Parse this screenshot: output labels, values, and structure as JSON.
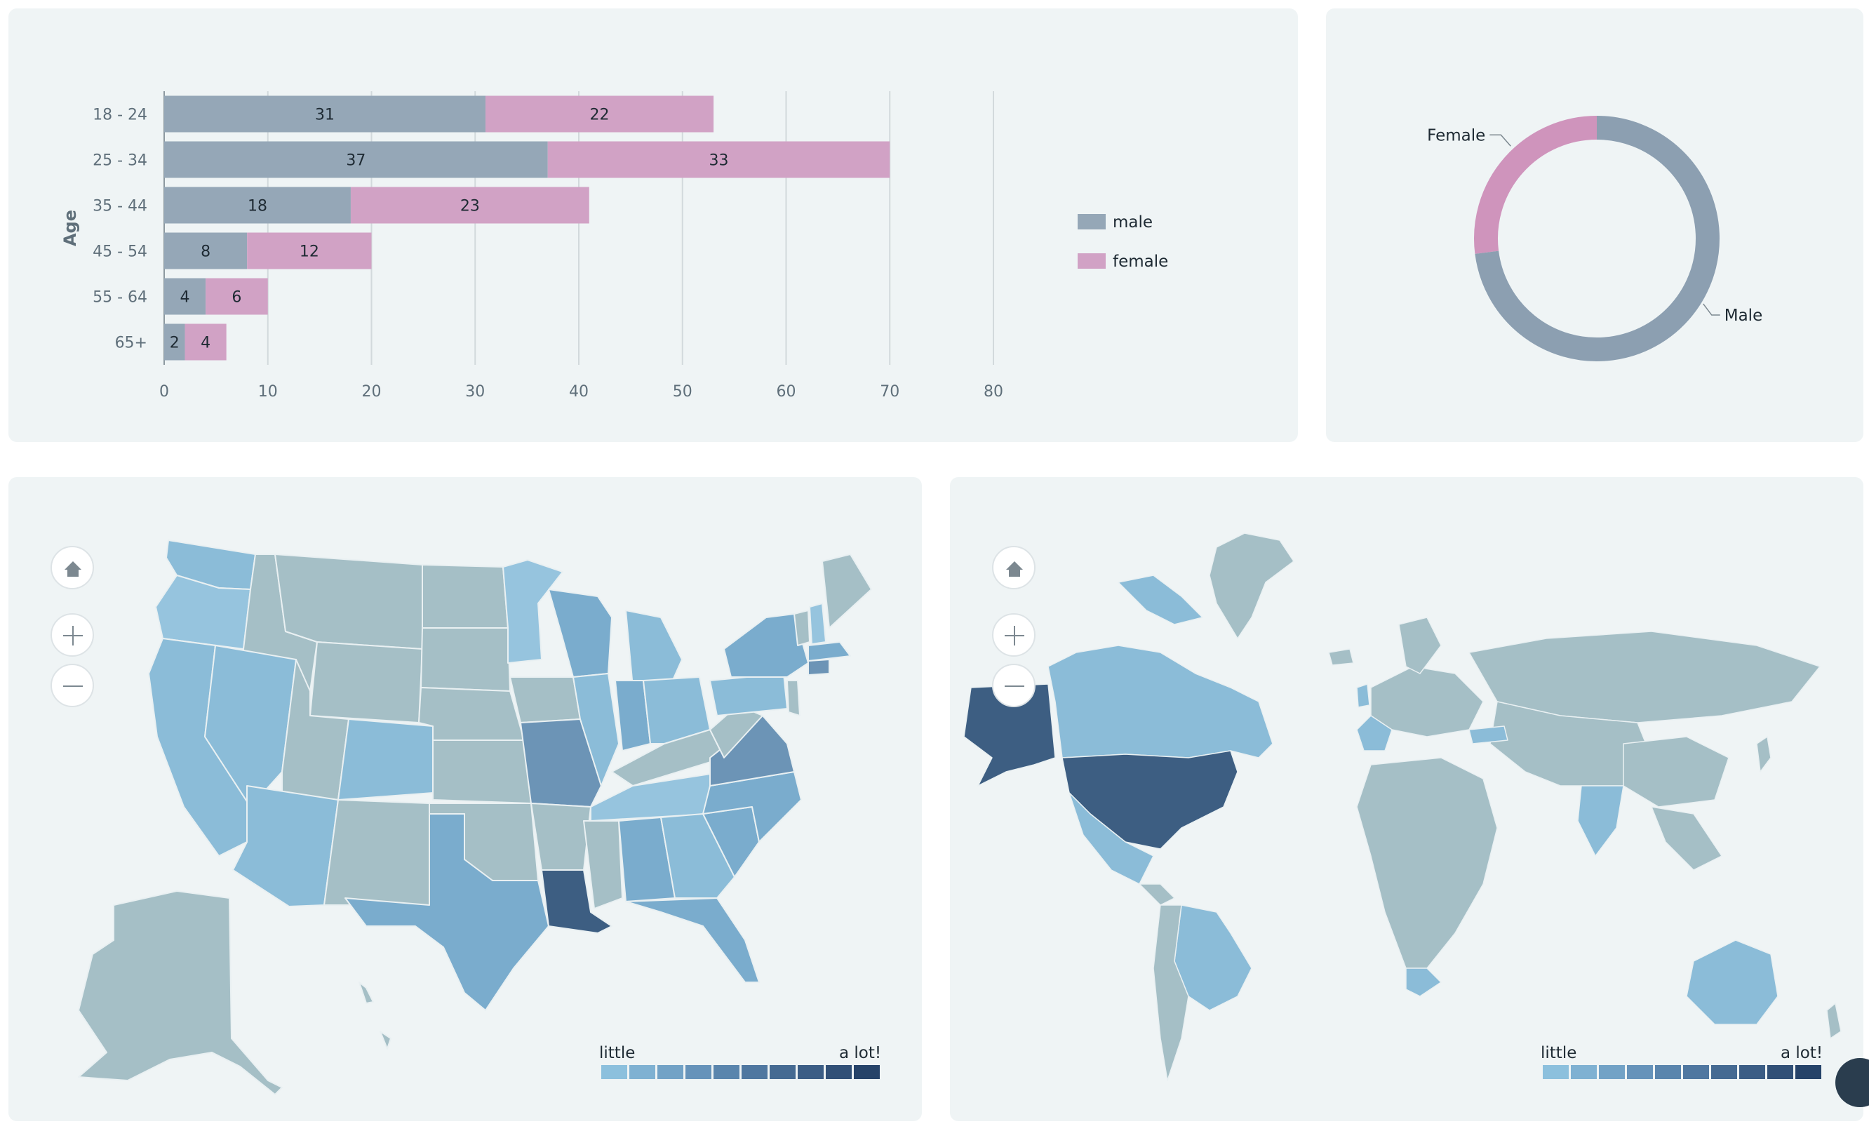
{
  "bar_chart": {
    "chart_data": {
      "type": "bar",
      "orientation": "horizontal",
      "stacked": true,
      "categories": [
        "18 - 24",
        "25 - 34",
        "35 - 44",
        "45 - 54",
        "55 - 64",
        "65+"
      ],
      "series": [
        {
          "name": "male",
          "values": [
            31,
            37,
            18,
            8,
            4,
            2
          ],
          "color": "#95a7b7"
        },
        {
          "name": "female",
          "values": [
            22,
            33,
            23,
            12,
            6,
            4
          ],
          "color": "#d1a2c5"
        }
      ],
      "xlabel": "",
      "ylabel": "Age",
      "xlim": [
        0,
        80
      ],
      "xticks": [
        "0",
        "10",
        "20",
        "30",
        "40",
        "50",
        "60",
        "70",
        "80"
      ],
      "grid": true,
      "legend": "right"
    }
  },
  "donut_chart": {
    "chart_data": {
      "type": "pie",
      "donut": true,
      "labels": [
        "Female",
        "Male"
      ],
      "values": [
        27,
        73
      ],
      "colors": [
        "#cf94bc",
        "#8c9fb1"
      ]
    }
  },
  "us_map": {
    "legend_low": "little",
    "legend_high": "a lot!",
    "home_icon": "home-icon",
    "zoom_in_icon": "plus-icon",
    "zoom_out_icon": "minus-icon"
  },
  "world_map": {
    "legend_low": "little",
    "legend_high": "a lot!",
    "home_icon": "home-icon",
    "zoom_in_icon": "plus-icon",
    "zoom_out_icon": "minus-icon"
  },
  "palette": {
    "neutral": "#a5bfc6",
    "scale": [
      "#8cc0dd",
      "#7fb1d2",
      "#72a2c6",
      "#6693ba",
      "#5a85ad",
      "#4f77a0",
      "#456a92",
      "#3b5d85",
      "#315077",
      "#264369"
    ]
  }
}
